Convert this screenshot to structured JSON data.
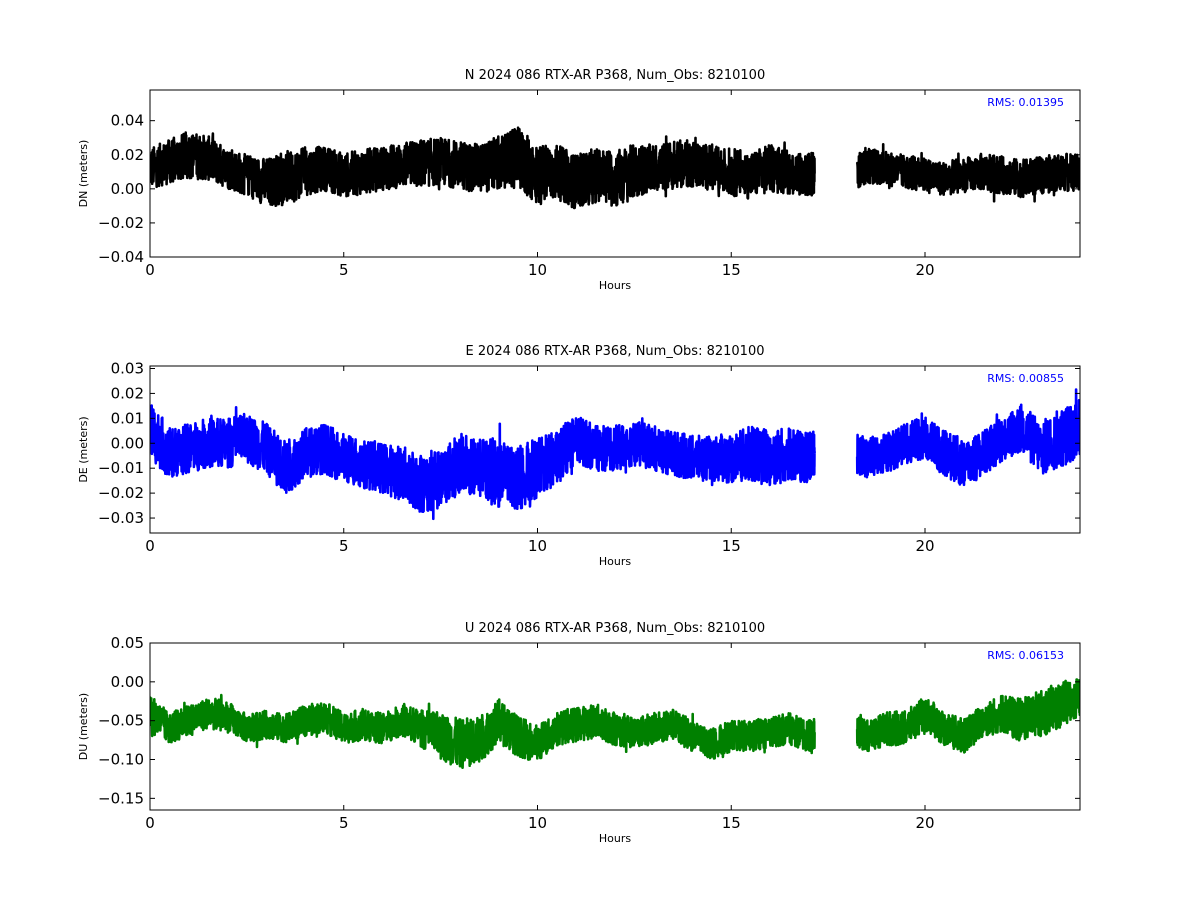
{
  "chart_data": [
    {
      "type": "line",
      "title": "N 2024 086 RTX-AR  P368, Num_Obs: 8210100",
      "xlabel": "Hours",
      "ylabel": "DN (meters)",
      "xlim": [
        0,
        24
      ],
      "ylim": [
        -0.04,
        0.058
      ],
      "x_ticks": [
        0,
        5,
        10,
        15,
        20
      ],
      "x_tick_labels": [
        "0",
        "5",
        "10",
        "15",
        "20"
      ],
      "y_ticks": [
        -0.04,
        -0.02,
        0.0,
        0.02,
        0.04
      ],
      "y_tick_labels": [
        "−0.04",
        "−0.02",
        "0.00",
        "0.02",
        "0.04"
      ],
      "color": "#000000",
      "rms_label": "RMS:  0.01395",
      "rms_color": "#0000ff",
      "data_gap_hours": [
        17.15,
        18.25
      ],
      "series": [
        {
          "x": [
            0,
            0.5,
            1,
            1.5,
            2,
            2.5,
            3,
            3.5,
            4,
            4.5,
            5,
            5.5,
            6,
            6.5,
            7,
            7.5,
            8,
            8.5,
            9,
            9.5,
            10,
            10.5,
            11,
            11.5,
            12,
            12.5,
            13,
            13.5,
            14,
            14.5,
            15,
            15.5,
            16,
            16.5,
            17,
            17.15,
            null,
            18.25,
            18.5,
            19,
            19.5,
            20,
            20.5,
            21,
            21.5,
            22,
            22.5,
            23,
            23.5,
            24
          ],
          "y": [
            0.012,
            0.016,
            0.02,
            0.018,
            0.012,
            0.008,
            0.004,
            0.006,
            0.01,
            0.012,
            0.008,
            0.01,
            0.012,
            0.014,
            0.015,
            0.016,
            0.014,
            0.012,
            0.015,
            0.018,
            0.008,
            0.01,
            0.004,
            0.008,
            0.006,
            0.01,
            0.012,
            0.014,
            0.015,
            0.012,
            0.01,
            0.008,
            0.012,
            0.01,
            0.008,
            0.009,
            null,
            0.01,
            0.014,
            0.012,
            0.01,
            0.008,
            0.006,
            0.008,
            0.01,
            0.008,
            0.006,
            0.008,
            0.01,
            0.009
          ],
          "band": [
            0.012,
            0.013,
            0.014,
            0.013,
            0.012,
            0.012,
            0.014,
            0.016,
            0.014,
            0.013,
            0.013,
            0.013,
            0.013,
            0.013,
            0.014,
            0.014,
            0.014,
            0.014,
            0.016,
            0.018,
            0.018,
            0.016,
            0.016,
            0.016,
            0.017,
            0.016,
            0.014,
            0.014,
            0.014,
            0.013,
            0.014,
            0.014,
            0.014,
            0.013,
            0.013,
            0.013,
            null,
            0.01,
            0.011,
            0.01,
            0.01,
            0.01,
            0.01,
            0.01,
            0.011,
            0.011,
            0.011,
            0.011,
            0.011,
            0.011
          ]
        }
      ]
    },
    {
      "type": "line",
      "title": "E 2024 086 RTX-AR  P368, Num_Obs: 8210100",
      "xlabel": "Hours",
      "ylabel": "DE (meters)",
      "xlim": [
        0,
        24
      ],
      "ylim": [
        -0.036,
        0.031
      ],
      "x_ticks": [
        0,
        5,
        10,
        15,
        20
      ],
      "x_tick_labels": [
        "0",
        "5",
        "10",
        "15",
        "20"
      ],
      "y_ticks": [
        -0.03,
        -0.02,
        -0.01,
        0.0,
        0.01,
        0.02,
        0.03
      ],
      "y_tick_labels": [
        "−0.03",
        "−0.02",
        "−0.01",
        "0.00",
        "0.01",
        "0.02",
        "0.03"
      ],
      "color": "#0000ff",
      "rms_label": "RMS:  0.00855",
      "rms_color": "#0000ff",
      "data_gap_hours": [
        17.15,
        18.25
      ],
      "series": [
        {
          "x": [
            0,
            0.5,
            1,
            1.5,
            2,
            2.5,
            3,
            3.5,
            4,
            4.5,
            5,
            5.5,
            6,
            6.5,
            7,
            7.5,
            8,
            8.5,
            9,
            9.5,
            10,
            10.5,
            11,
            11.5,
            12,
            12.5,
            13,
            13.5,
            14,
            14.5,
            15,
            15.5,
            16,
            16.5,
            17,
            17.15,
            null,
            18.25,
            18.5,
            19,
            19.5,
            20,
            20.5,
            21,
            21.5,
            22,
            22.5,
            23,
            23.5,
            24
          ],
          "y": [
            0.006,
            -0.004,
            -0.002,
            0.0,
            0.0,
            0.002,
            -0.002,
            -0.01,
            -0.004,
            -0.002,
            -0.006,
            -0.008,
            -0.01,
            -0.012,
            -0.016,
            -0.014,
            -0.008,
            -0.01,
            -0.012,
            -0.014,
            -0.01,
            -0.006,
            0.002,
            -0.002,
            -0.002,
            0.0,
            -0.002,
            -0.004,
            -0.006,
            -0.006,
            -0.006,
            -0.004,
            -0.006,
            -0.004,
            -0.006,
            -0.004,
            null,
            -0.004,
            -0.006,
            -0.004,
            0.0,
            0.002,
            -0.004,
            -0.008,
            -0.004,
            0.002,
            0.006,
            -0.002,
            0.002,
            0.006
          ],
          "band": [
            0.012,
            0.01,
            0.01,
            0.01,
            0.01,
            0.01,
            0.01,
            0.011,
            0.01,
            0.01,
            0.01,
            0.01,
            0.01,
            0.011,
            0.012,
            0.012,
            0.012,
            0.012,
            0.014,
            0.013,
            0.012,
            0.011,
            0.01,
            0.009,
            0.009,
            0.009,
            0.009,
            0.009,
            0.009,
            0.009,
            0.01,
            0.011,
            0.012,
            0.011,
            0.01,
            0.009,
            null,
            0.008,
            0.008,
            0.008,
            0.008,
            0.009,
            0.009,
            0.01,
            0.009,
            0.009,
            0.01,
            0.011,
            0.012,
            0.012
          ]
        }
      ]
    },
    {
      "type": "line",
      "title": "U 2024 086 RTX-AR  P368, Num_Obs: 8210100",
      "xlabel": "Hours",
      "ylabel": "DU (meters)",
      "xlim": [
        0,
        24
      ],
      "ylim": [
        -0.165,
        0.05
      ],
      "x_ticks": [
        0,
        5,
        10,
        15,
        20
      ],
      "x_tick_labels": [
        "0",
        "5",
        "10",
        "15",
        "20"
      ],
      "y_ticks": [
        -0.15,
        -0.1,
        -0.05,
        0.0,
        0.05
      ],
      "y_tick_labels": [
        "−0.15",
        "−0.10",
        "−0.05",
        "0.00",
        "0.05"
      ],
      "color": "#008000",
      "rms_label": "RMS:  0.06153",
      "rms_color": "#0000ff",
      "data_gap_hours": [
        17.15,
        18.25
      ],
      "series": [
        {
          "x": [
            0,
            0.5,
            1,
            1.5,
            2,
            2.5,
            3,
            3.5,
            4,
            4.5,
            5,
            5.5,
            6,
            6.5,
            7,
            7.5,
            8,
            8.5,
            9,
            9.5,
            10,
            10.5,
            11,
            11.5,
            12,
            12.5,
            13,
            13.5,
            14,
            14.5,
            15,
            15.5,
            16,
            16.5,
            17,
            17.15,
            null,
            18.25,
            18.5,
            19,
            19.5,
            20,
            20.5,
            21,
            21.5,
            22,
            22.5,
            23,
            23.5,
            24
          ],
          "y": [
            -0.04,
            -0.06,
            -0.05,
            -0.04,
            -0.045,
            -0.06,
            -0.055,
            -0.06,
            -0.05,
            -0.045,
            -0.06,
            -0.055,
            -0.06,
            -0.05,
            -0.06,
            -0.07,
            -0.08,
            -0.075,
            -0.05,
            -0.07,
            -0.08,
            -0.06,
            -0.055,
            -0.05,
            -0.06,
            -0.065,
            -0.06,
            -0.055,
            -0.07,
            -0.08,
            -0.07,
            -0.07,
            -0.065,
            -0.06,
            -0.07,
            -0.065,
            null,
            -0.065,
            -0.07,
            -0.06,
            -0.06,
            -0.04,
            -0.06,
            -0.07,
            -0.05,
            -0.04,
            -0.05,
            -0.04,
            -0.03,
            -0.02
          ],
          "band": [
            0.025,
            0.02,
            0.02,
            0.02,
            0.02,
            0.018,
            0.018,
            0.018,
            0.02,
            0.02,
            0.02,
            0.02,
            0.02,
            0.02,
            0.024,
            0.03,
            0.032,
            0.03,
            0.028,
            0.026,
            0.024,
            0.022,
            0.022,
            0.022,
            0.022,
            0.02,
            0.02,
            0.02,
            0.02,
            0.02,
            0.02,
            0.02,
            0.02,
            0.02,
            0.02,
            0.02,
            null,
            0.02,
            0.02,
            0.022,
            0.022,
            0.022,
            0.022,
            0.022,
            0.022,
            0.025,
            0.028,
            0.03,
            0.03,
            0.025
          ]
        }
      ]
    }
  ]
}
